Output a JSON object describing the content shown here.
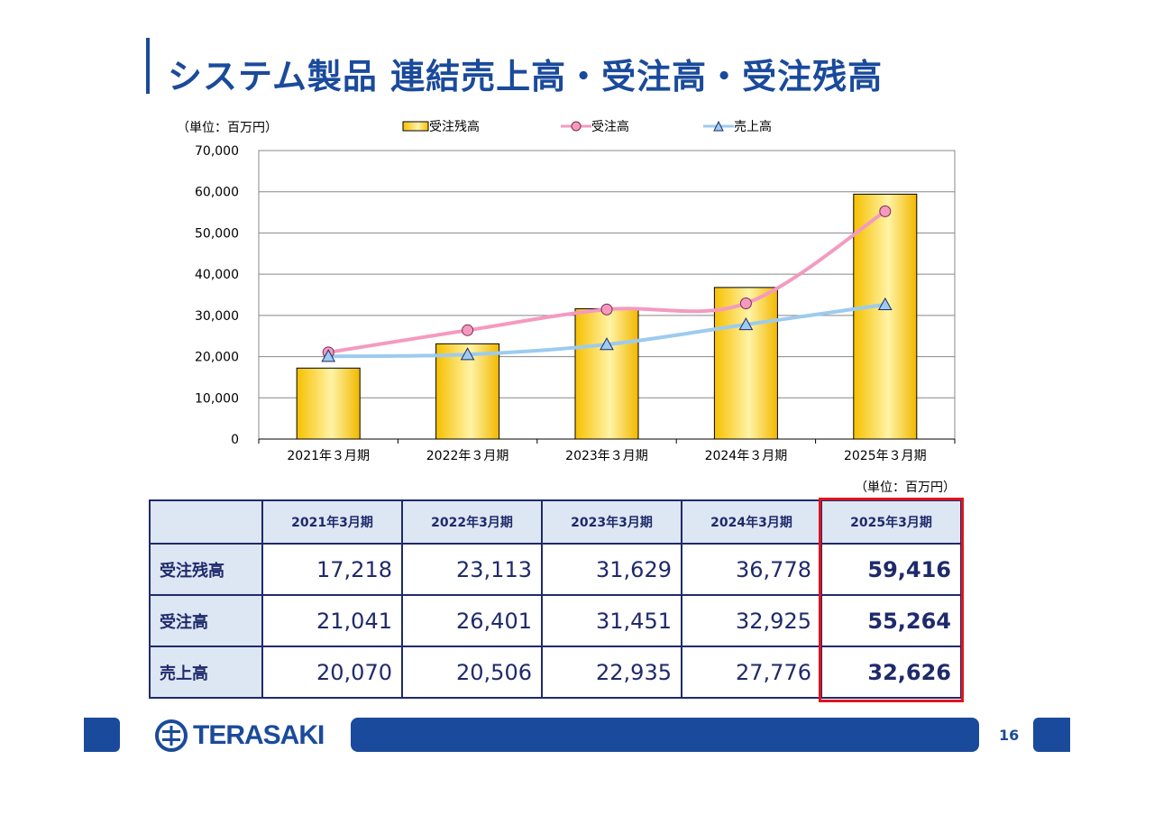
{
  "title": "システム製品 連結売上高・受注高・受注残高",
  "unit_label": "（単位：百万円）",
  "page_number": "16",
  "logo_text": "TERASAKI",
  "colors": {
    "brand": "#1a4a9b",
    "bar": "#f5c518",
    "order_line": "#f49ac1",
    "sales_line": "#9dcbef",
    "highlight": "#e0141e"
  },
  "chart_data": {
    "type": "bar",
    "categories": [
      "2021年３月期",
      "2022年３月期",
      "2023年３月期",
      "2024年３月期",
      "2025年３月期"
    ],
    "series": [
      {
        "name": "受注残高",
        "type": "bar",
        "values": [
          17218,
          23113,
          31629,
          36778,
          59416
        ]
      },
      {
        "name": "受注高",
        "type": "line",
        "marker": "circle",
        "values": [
          21041,
          26401,
          31451,
          32925,
          55264
        ]
      },
      {
        "name": "売上高",
        "type": "line",
        "marker": "triangle",
        "values": [
          20070,
          20506,
          22935,
          27776,
          32626
        ]
      }
    ],
    "ylim": [
      0,
      70000
    ],
    "yticks": [
      "0",
      "10,000",
      "20,000",
      "30,000",
      "40,000",
      "50,000",
      "60,000",
      "70,000"
    ],
    "grid": true,
    "legend_position": "top"
  },
  "table": {
    "headers": [
      "2021年3月期",
      "2022年3月期",
      "2023年3月期",
      "2024年3月期",
      "2025年3月期"
    ],
    "rows": [
      {
        "label": "受注残高",
        "values": [
          "17,218",
          "23,113",
          "31,629",
          "36,778",
          "59,416"
        ]
      },
      {
        "label": "受注高",
        "values": [
          "21,041",
          "26,401",
          "31,451",
          "32,925",
          "55,264"
        ]
      },
      {
        "label": "売上高",
        "values": [
          "20,070",
          "20,506",
          "22,935",
          "27,776",
          "32,626"
        ]
      }
    ]
  }
}
